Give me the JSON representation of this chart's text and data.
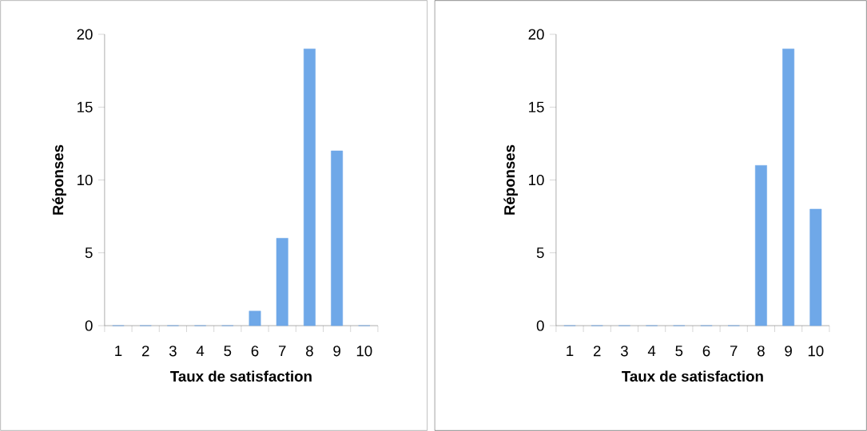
{
  "chart_data": [
    {
      "type": "bar",
      "xlabel": "Taux de satisfaction",
      "ylabel": "Réponses",
      "categories": [
        "1",
        "2",
        "3",
        "4",
        "5",
        "6",
        "7",
        "8",
        "9",
        "10"
      ],
      "values": [
        0,
        0,
        0,
        0,
        0,
        1,
        6,
        19,
        12,
        0
      ],
      "color": "#6fa8e8",
      "ylim": [
        0,
        20
      ],
      "yticks": [
        0,
        5,
        10,
        15,
        20
      ]
    },
    {
      "type": "bar",
      "xlabel": "Taux de satisfaction",
      "ylabel": "Réponses",
      "categories": [
        "1",
        "2",
        "3",
        "4",
        "5",
        "6",
        "7",
        "8",
        "9",
        "10"
      ],
      "values": [
        0,
        0,
        0,
        0,
        0,
        0,
        0,
        11,
        19,
        8
      ],
      "color": "#6fa8e8",
      "ylim": [
        0,
        20
      ],
      "yticks": [
        0,
        5,
        10,
        15,
        20
      ]
    }
  ]
}
